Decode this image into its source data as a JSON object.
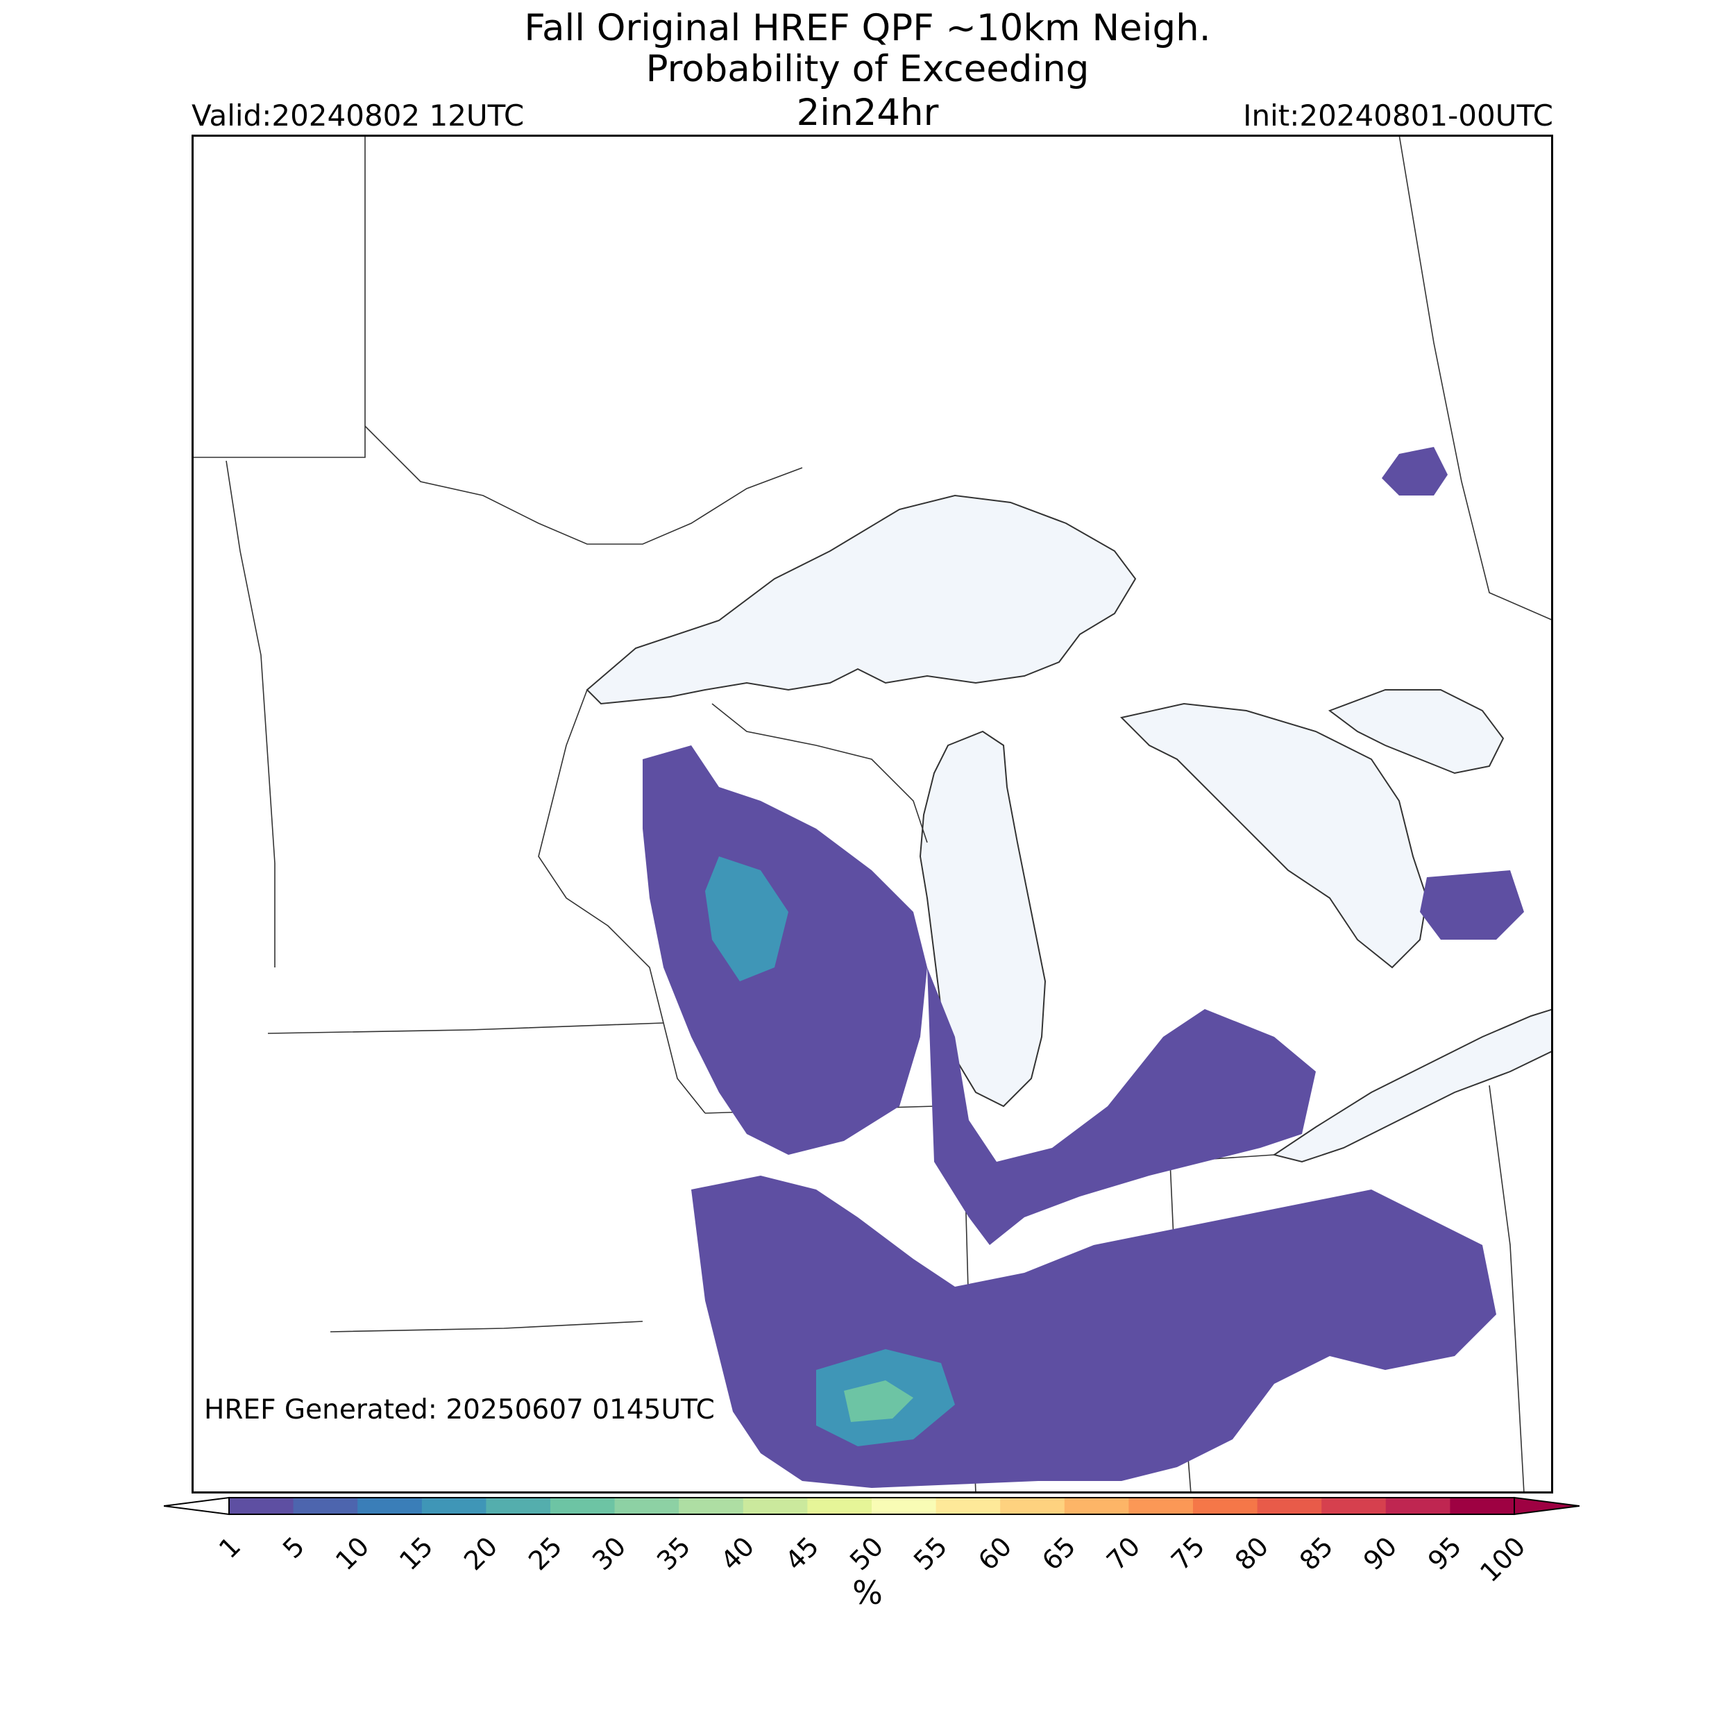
{
  "header": {
    "title_line1": "Fall Original HREF QPF ~10km Neigh.",
    "title_line2": "Probability of Exceeding",
    "field": "2in24hr",
    "valid": "Valid:20240802 12UTC",
    "init": "Init:20240801-00UTC"
  },
  "footer": {
    "generated": "HREF Generated: 20250607 0145UTC"
  },
  "legend": {
    "unit": "%",
    "levels": [
      "1",
      "5",
      "10",
      "15",
      "20",
      "25",
      "30",
      "35",
      "40",
      "45",
      "50",
      "55",
      "60",
      "65",
      "70",
      "75",
      "80",
      "85",
      "90",
      "95",
      "100"
    ],
    "colors": [
      "#5e4fa2",
      "#4d65ae",
      "#3a7eb8",
      "#3f96b7",
      "#54aead",
      "#6dc4a4",
      "#8dd1a4",
      "#aedea3",
      "#cbe99d",
      "#e6f598",
      "#f9fcb5",
      "#fee999",
      "#fed27f",
      "#fdb567",
      "#fb9856",
      "#f57748",
      "#e85b49",
      "#d6404e",
      "#bf2651",
      "#9e0142"
    ]
  },
  "map": {
    "land_color": "#ffffff",
    "water_color": "#f2f6fb",
    "border_color": "#333333",
    "region": "Upper Midwest / Great Lakes"
  }
}
